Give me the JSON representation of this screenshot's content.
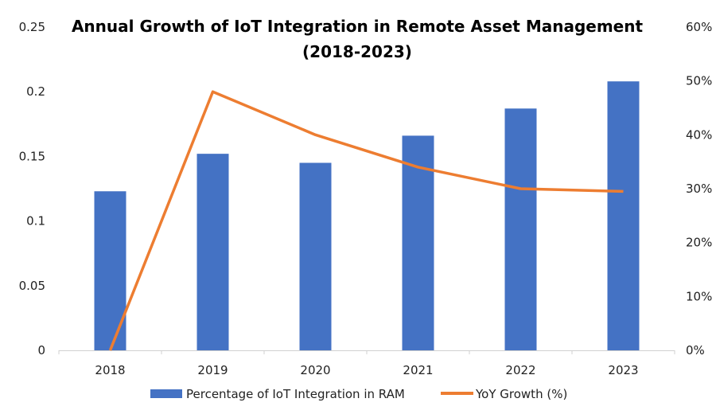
{
  "chart_data": {
    "type": "bar",
    "title_lines": [
      "Annual Growth of IoT Integration in Remote Asset Management",
      "(2018-2023)"
    ],
    "xlabel": "",
    "ylabel": "",
    "categories": [
      "2018",
      "2019",
      "2020",
      "2021",
      "2022",
      "2023"
    ],
    "series": [
      {
        "name": "Percentage of IoT Integration in RAM",
        "type": "bar",
        "axis": "left",
        "color": "#4472C4",
        "values": [
          0.123,
          0.152,
          0.145,
          0.166,
          0.187,
          0.208
        ]
      },
      {
        "name": "YoY Growth (%)",
        "type": "line",
        "axis": "right",
        "color": "#ED7D31",
        "values": [
          0,
          48,
          40,
          34,
          30,
          29.5
        ]
      }
    ],
    "left_axis": {
      "ylim": [
        0,
        0.25
      ],
      "ticks": [
        0,
        0.05,
        0.1,
        0.15,
        0.2,
        0.25
      ],
      "tick_labels": [
        "0",
        "0.05",
        "0.1",
        "0.15",
        "0.2",
        "0.25"
      ]
    },
    "right_axis": {
      "ylim": [
        0,
        60
      ],
      "ticks": [
        0,
        10,
        20,
        30,
        40,
        50,
        60
      ],
      "tick_labels": [
        "0%",
        "10%",
        "20%",
        "30%",
        "40%",
        "50%",
        "60%"
      ]
    },
    "grid": false,
    "legend_position": "bottom"
  }
}
